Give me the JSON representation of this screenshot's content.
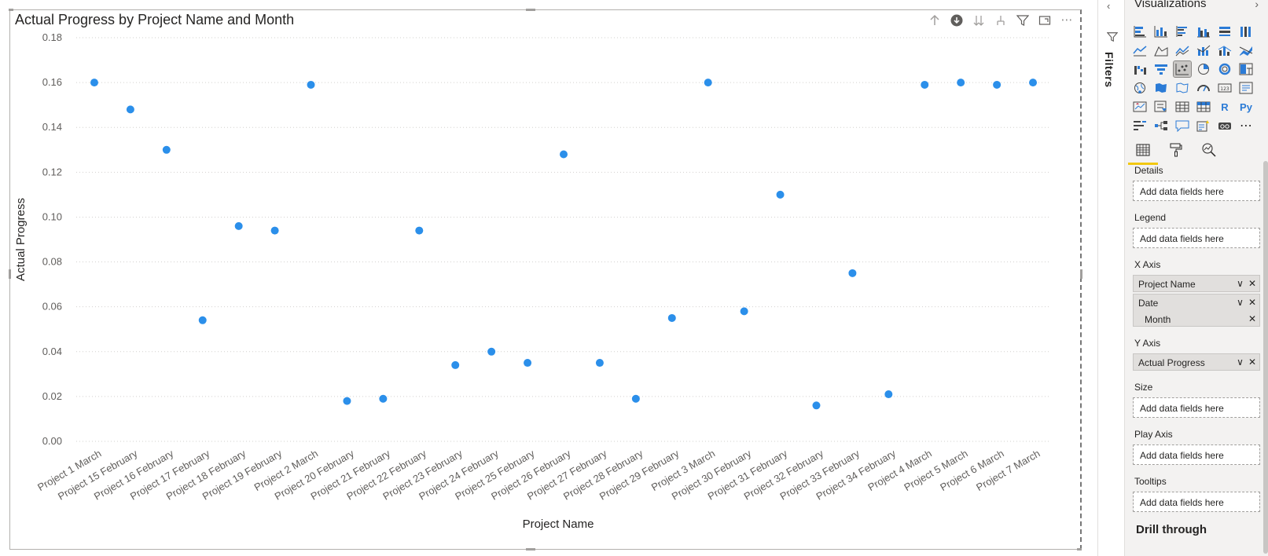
{
  "chart_data": {
    "type": "scatter",
    "title": "Actual Progress by Project Name and Month",
    "xlabel": "Project Name",
    "ylabel": "Actual Progress",
    "ylim": [
      0,
      0.18
    ],
    "yticks": [
      "0.00",
      "0.02",
      "0.04",
      "0.06",
      "0.08",
      "0.10",
      "0.12",
      "0.14",
      "0.16",
      "0.18"
    ],
    "grid": "horizontal dotted",
    "color": "#2b8fea",
    "categories": [
      "Project 1 March",
      "Project 15 February",
      "Project 16 February",
      "Project 17 February",
      "Project 18 February",
      "Project 19 February",
      "Project 2 March",
      "Project 20 February",
      "Project 21 February",
      "Project 22 February",
      "Project 23 February",
      "Project 24 February",
      "Project 25 February",
      "Project 26 February",
      "Project 27 February",
      "Project 28 February",
      "Project 29 February",
      "Project 3 March",
      "Project 30 February",
      "Project 31 February",
      "Project 32 February",
      "Project 33 February",
      "Project 34 February",
      "Project 4 March",
      "Project 5 March",
      "Project 6 March",
      "Project 7 March"
    ],
    "values": [
      0.16,
      0.148,
      0.13,
      0.054,
      0.096,
      0.094,
      0.159,
      0.018,
      0.019,
      0.094,
      0.034,
      0.04,
      0.035,
      0.128,
      0.035,
      0.019,
      0.055,
      0.16,
      0.058,
      0.11,
      0.016,
      0.075,
      0.021,
      0.159,
      0.16,
      0.159,
      0.16
    ]
  },
  "header_icons": [
    "drill-up-icon",
    "drill-down-icon",
    "expand-next-level-icon",
    "expand-hierarchy-icon",
    "filter-icon",
    "focus-mode-icon",
    "more-options-icon"
  ],
  "more_glyph": "⋯",
  "filters": {
    "label": "Filters",
    "collapse_glyph": "‹"
  },
  "viz_pane": {
    "title": "Visualizations",
    "expand_glyph": "›",
    "r_label": "R",
    "py_label": "Py",
    "more_glyph": "⋯",
    "wells": {
      "details": {
        "label": "Details",
        "placeholder": "Add data fields here"
      },
      "legend": {
        "label": "Legend",
        "placeholder": "Add data fields here"
      },
      "x_axis": {
        "label": "X Axis",
        "field1": "Project Name",
        "field2": "Date",
        "sub_field": "Month"
      },
      "y_axis": {
        "label": "Y Axis",
        "field1": "Actual Progress"
      },
      "size": {
        "label": "Size",
        "placeholder": "Add data fields here"
      },
      "play_axis": {
        "label": "Play Axis",
        "placeholder": "Add data fields here"
      },
      "tooltips": {
        "label": "Tooltips",
        "placeholder": "Add data fields here"
      }
    },
    "drill_through": "Drill through",
    "chevron_glyph": "∨",
    "remove_glyph": "✕",
    "accent_color": "#f2c811"
  }
}
